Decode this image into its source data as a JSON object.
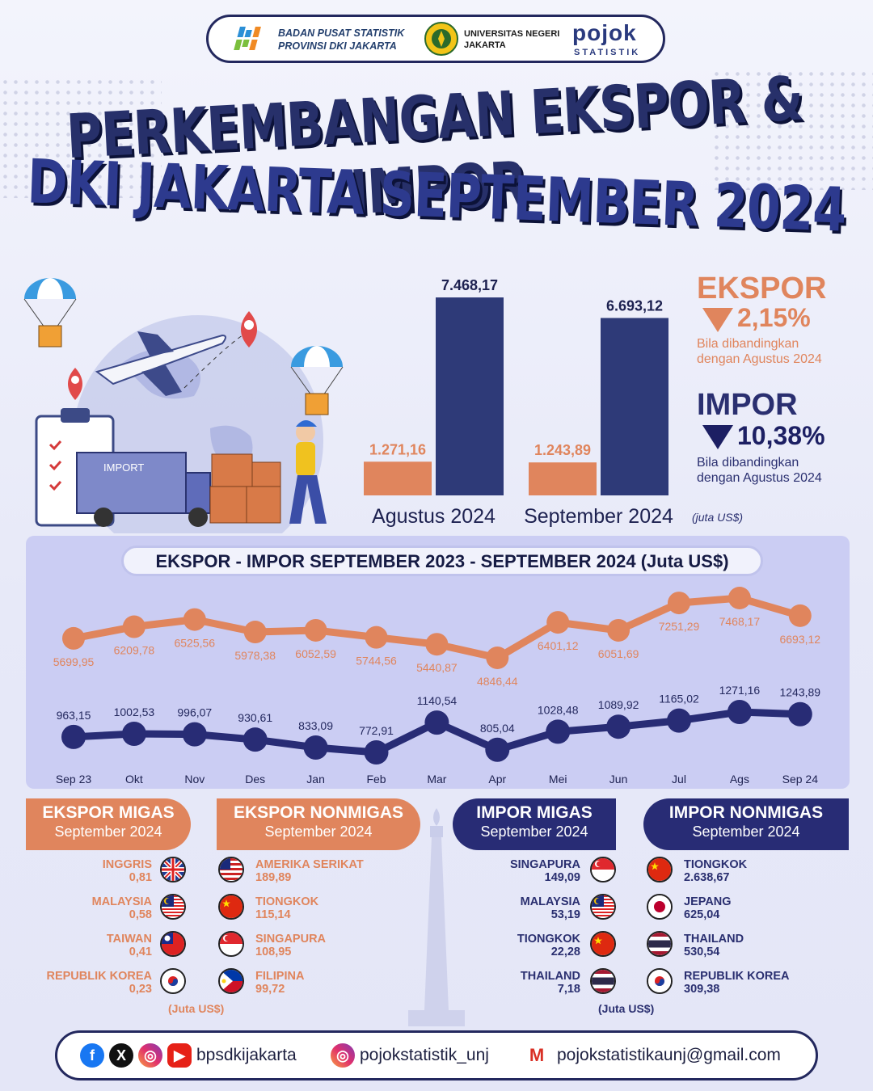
{
  "header": {
    "bps_line1": "BADAN PUSAT STATISTIK",
    "bps_line2": "PROVINSI DKI JAKARTA",
    "unj_line1": "UNIVERSITAS NEGERI",
    "unj_line2": "JAKARTA",
    "pojok_brand": "pojok",
    "pojok_sub": "STATISTIK"
  },
  "title": {
    "line1": "PERKEMBANGAN EKSPOR & IMPOR",
    "line2": "DKI JAKARTA SEPTEMBER 2024"
  },
  "illustration": {
    "truck_label": "IMPORT"
  },
  "colors": {
    "ekspor": "#e0855d",
    "impor": "#2e3a78",
    "impor_dark": "#282c75",
    "panel": "#cbcdf3"
  },
  "summary": {
    "ekspor_label": "EKSPOR",
    "ekspor_change": "2,15%",
    "ekspor_note_1": "Bila dibandingkan",
    "ekspor_note_2": "dengan Agustus 2024",
    "impor_label": "IMPOR",
    "impor_change": "10,38%",
    "impor_note_1": "Bila dibandingkan",
    "impor_note_2": "dengan Agustus 2024",
    "unit": "(juta US$)"
  },
  "chart_data": [
    {
      "type": "bar",
      "categories": [
        "Agustus 2024",
        "September 2024"
      ],
      "series": [
        {
          "values": [
            1271.16,
            1243.89
          ],
          "labels": [
            "1.271,16",
            "1.243,89"
          ]
        },
        {
          "values": [
            7468.17,
            6693.12
          ],
          "labels": [
            "7.468,17",
            "6.693,12"
          ]
        }
      ],
      "ylim": [
        0,
        7500
      ]
    },
    {
      "type": "line",
      "title": "EKSPOR - IMPOR SEPTEMBER 2023 - SEPTEMBER 2024 (Juta US$)",
      "x": [
        "Sep 23",
        "Okt",
        "Nov",
        "Des",
        "Jan",
        "Feb",
        "Mar",
        "Apr",
        "Mei",
        "Jun",
        "Jul",
        "Ags",
        "Sep 24"
      ],
      "series": [
        {
          "values": [
            5699.95,
            6209.78,
            6525.56,
            5978.38,
            6052.59,
            5744.56,
            5440.87,
            4846.44,
            6401.12,
            6051.69,
            7251.29,
            7468.17,
            6693.12
          ],
          "labels": [
            "5699,95",
            "6209,78",
            "6525,56",
            "5978,38",
            "6052,59",
            "5744,56",
            "5440,87",
            "4846,44",
            "6401,12",
            "6051,69",
            "7251,29",
            "7468,17",
            "6693,12"
          ]
        },
        {
          "values": [
            963.15,
            1002.53,
            996.07,
            930.61,
            833.09,
            772.91,
            1140.54,
            805.04,
            1028.48,
            1089.92,
            1165.02,
            1271.16,
            1243.89
          ],
          "labels": [
            "963,15",
            "1002,53",
            "996,07",
            "930,61",
            "833,09",
            "772,91",
            "1140,54",
            "805,04",
            "1028,48",
            "1089,92",
            "1165,02",
            "1271,16",
            "1243,89"
          ]
        }
      ]
    }
  ],
  "breakdown": {
    "ekspor_migas": {
      "title": "EKSPOR MIGAS",
      "period": "September 2024",
      "items": [
        {
          "country": "INGGRIS",
          "value": "0,81",
          "flag": "uk-flag-icon"
        },
        {
          "country": "MALAYSIA",
          "value": "0,58",
          "flag": "malaysia-flag-icon"
        },
        {
          "country": "TAIWAN",
          "value": "0,41",
          "flag": "taiwan-flag-icon"
        },
        {
          "country": "REPUBLIK KOREA",
          "value": "0,23",
          "flag": "korea-flag-icon"
        }
      ],
      "unit": "(Juta US$)"
    },
    "ekspor_nonmigas": {
      "title": "EKSPOR NONMIGAS",
      "period": "September 2024",
      "items": [
        {
          "country": "AMERIKA SERIKAT",
          "value": "189,89",
          "flag": "usa-flag-icon"
        },
        {
          "country": "TIONGKOK",
          "value": "115,14",
          "flag": "china-flag-icon"
        },
        {
          "country": "SINGAPURA",
          "value": "108,95",
          "flag": "singapore-flag-icon"
        },
        {
          "country": "FILIPINA",
          "value": "99,72",
          "flag": "philippines-flag-icon"
        }
      ]
    },
    "impor_migas": {
      "title": "IMPOR MIGAS",
      "period": "September 2024",
      "items": [
        {
          "country": "SINGAPURA",
          "value": "149,09",
          "flag": "singapore-flag-icon"
        },
        {
          "country": "MALAYSIA",
          "value": "53,19",
          "flag": "malaysia-flag-icon"
        },
        {
          "country": "TIONGKOK",
          "value": "22,28",
          "flag": "china-flag-icon"
        },
        {
          "country": "THAILAND",
          "value": "7,18",
          "flag": "thailand-flag-icon"
        }
      ],
      "unit": "(Juta US$)"
    },
    "impor_nonmigas": {
      "title": "IMPOR NONMIGAS",
      "period": "September 2024",
      "items": [
        {
          "country": "TIONGKOK",
          "value": "2.638,67",
          "flag": "china-flag-icon"
        },
        {
          "country": "JEPANG",
          "value": "625,04",
          "flag": "japan-flag-icon"
        },
        {
          "country": "THAILAND",
          "value": "530,54",
          "flag": "thailand-flag-icon"
        },
        {
          "country": "REPUBLIK KOREA",
          "value": "309,38",
          "flag": "korea-flag-icon"
        }
      ]
    }
  },
  "footer": {
    "social_handle": "bpsdkijakarta",
    "instagram": "pojokstatistik_unj",
    "email": "pojokstatistikaunj@gmail.com"
  }
}
